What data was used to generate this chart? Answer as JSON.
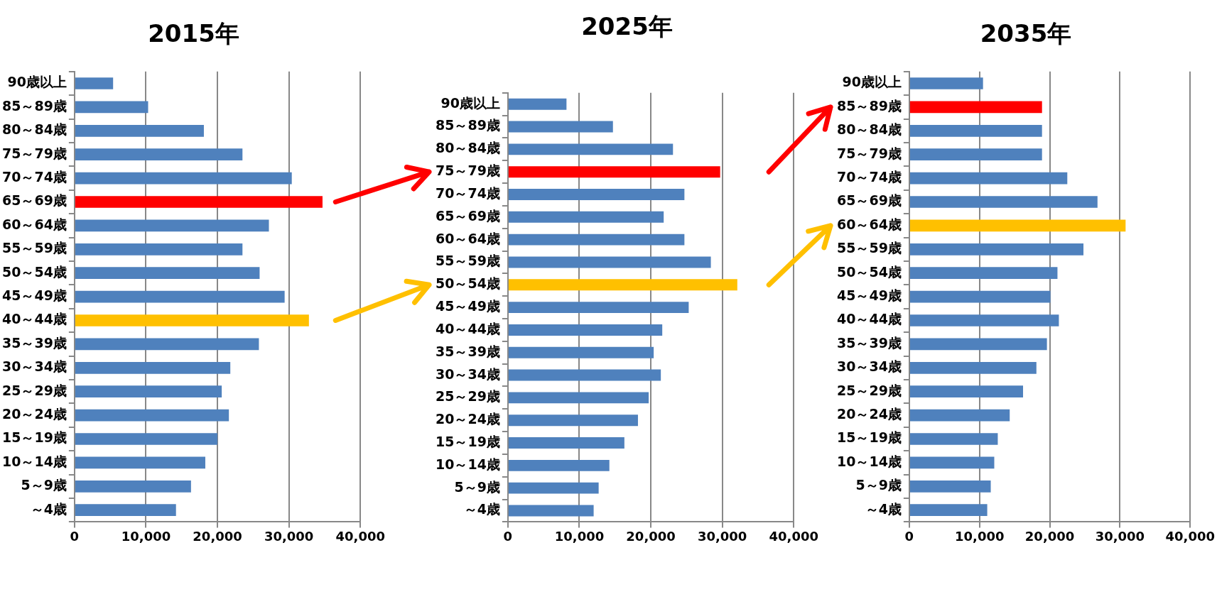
{
  "chart_data": [
    {
      "type": "bar",
      "orientation": "horizontal",
      "title": "2015年",
      "grid": "x",
      "categories": [
        "90歳以上",
        "85～89歳",
        "80～84歳",
        "75～79歳",
        "70～74歳",
        "65～69歳",
        "60～64歳",
        "55～59歳",
        "50～54歳",
        "45～49歳",
        "40～44歳",
        "35～39歳",
        "30～34歳",
        "25～29歳",
        "20～24歳",
        "15～19歳",
        "10～14歳",
        "5～9歳",
        "～4歳"
      ],
      "values": [
        5400,
        10300,
        18100,
        23500,
        30400,
        34700,
        27200,
        23500,
        25900,
        29400,
        32800,
        25800,
        21800,
        20600,
        21600,
        20000,
        18300,
        16300,
        14200
      ],
      "colors": [
        "#4f81bd",
        "#4f81bd",
        "#4f81bd",
        "#4f81bd",
        "#4f81bd",
        "#ff0000",
        "#4f81bd",
        "#4f81bd",
        "#4f81bd",
        "#4f81bd",
        "#ffc000",
        "#4f81bd",
        "#4f81bd",
        "#4f81bd",
        "#4f81bd",
        "#4f81bd",
        "#4f81bd",
        "#4f81bd",
        "#4f81bd"
      ],
      "xlim": [
        0,
        40000
      ],
      "xticks": [
        {
          "value": 0,
          "label": "0"
        },
        {
          "value": 10000,
          "label": "10,000"
        },
        {
          "value": 20000,
          "label": "20,000"
        },
        {
          "value": 30000,
          "label": "30,000"
        },
        {
          "value": 40000,
          "label": "40,000"
        }
      ]
    },
    {
      "type": "bar",
      "orientation": "horizontal",
      "title": "2025年",
      "grid": "x",
      "categories": [
        "90歳以上",
        "85～89歳",
        "80～84歳",
        "75～79歳",
        "70～74歳",
        "65～69歳",
        "60～64歳",
        "55～59歳",
        "50～54歳",
        "45～49歳",
        "40～44歳",
        "35～39歳",
        "30～34歳",
        "25～29歳",
        "20～24歳",
        "15～19歳",
        "10～14歳",
        "5～9歳",
        "～4歳"
      ],
      "values": [
        8200,
        14700,
        23100,
        29700,
        24700,
        21800,
        24700,
        28400,
        32100,
        25300,
        21600,
        20400,
        21400,
        19700,
        18200,
        16300,
        14200,
        12700,
        12000
      ],
      "colors": [
        "#4f81bd",
        "#4f81bd",
        "#4f81bd",
        "#ff0000",
        "#4f81bd",
        "#4f81bd",
        "#4f81bd",
        "#4f81bd",
        "#ffc000",
        "#4f81bd",
        "#4f81bd",
        "#4f81bd",
        "#4f81bd",
        "#4f81bd",
        "#4f81bd",
        "#4f81bd",
        "#4f81bd",
        "#4f81bd",
        "#4f81bd"
      ],
      "xlim": [
        0,
        40000
      ],
      "xticks": [
        {
          "value": 0,
          "label": "0"
        },
        {
          "value": 10000,
          "label": "10,000"
        },
        {
          "value": 20000,
          "label": "20,000"
        },
        {
          "value": 30000,
          "label": "30,000"
        },
        {
          "value": 40000,
          "label": "40,000"
        }
      ]
    },
    {
      "type": "bar",
      "orientation": "horizontal",
      "title": "2035年",
      "grid": "x",
      "categories": [
        "90歳以上",
        "85～89歳",
        "80～84歳",
        "75～79歳",
        "70～74歳",
        "65～69歳",
        "60～64歳",
        "55～59歳",
        "50～54歳",
        "45～49歳",
        "40～44歳",
        "35～39歳",
        "30～34歳",
        "25～29歳",
        "20～24歳",
        "15～19歳",
        "10～14歳",
        "5～9歳",
        "～4歳"
      ],
      "values": [
        10500,
        18900,
        18900,
        18900,
        22500,
        26800,
        30800,
        24800,
        21100,
        20100,
        21300,
        19600,
        18100,
        16200,
        14300,
        12600,
        12100,
        11600,
        11100
      ],
      "colors": [
        "#4f81bd",
        "#ff0000",
        "#4f81bd",
        "#4f81bd",
        "#4f81bd",
        "#4f81bd",
        "#ffc000",
        "#4f81bd",
        "#4f81bd",
        "#4f81bd",
        "#4f81bd",
        "#4f81bd",
        "#4f81bd",
        "#4f81bd",
        "#4f81bd",
        "#4f81bd",
        "#4f81bd",
        "#4f81bd",
        "#4f81bd"
      ],
      "xlim": [
        0,
        40000
      ],
      "xticks": [
        {
          "value": 0,
          "label": "0"
        },
        {
          "value": 10000,
          "label": "10,000"
        },
        {
          "value": 20000,
          "label": "20,000"
        },
        {
          "value": 30000,
          "label": "30,000"
        },
        {
          "value": 40000,
          "label": "40,000"
        }
      ]
    }
  ]
}
